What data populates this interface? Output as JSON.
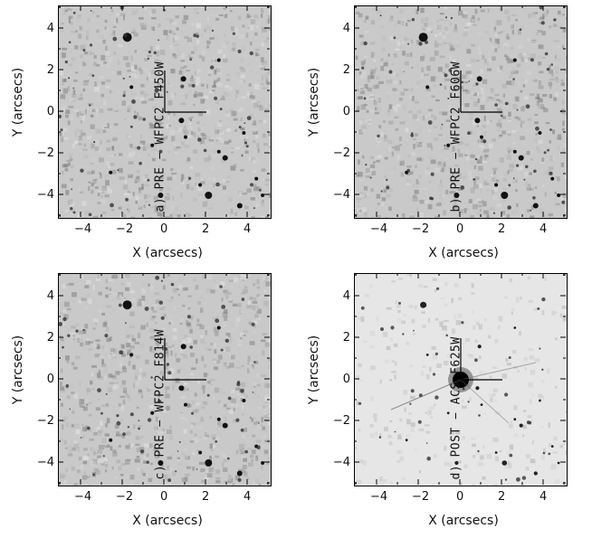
{
  "axis": {
    "xlabel": "X (arcsecs)",
    "ylabel": "Y (arcsecs)",
    "xticks": [
      "−4",
      "−2",
      "0",
      "2",
      "4"
    ],
    "yticks": [
      "4",
      "2",
      "0",
      "−2",
      "−4"
    ]
  },
  "panels": [
    {
      "label": "a) PRE − WFPC2 F450W"
    },
    {
      "label": "b) PRE − WFPC2 F606W"
    },
    {
      "label": "c) PRE − WFPC2 F814W"
    },
    {
      "label": "d) POST − ACS F625W"
    }
  ]
}
